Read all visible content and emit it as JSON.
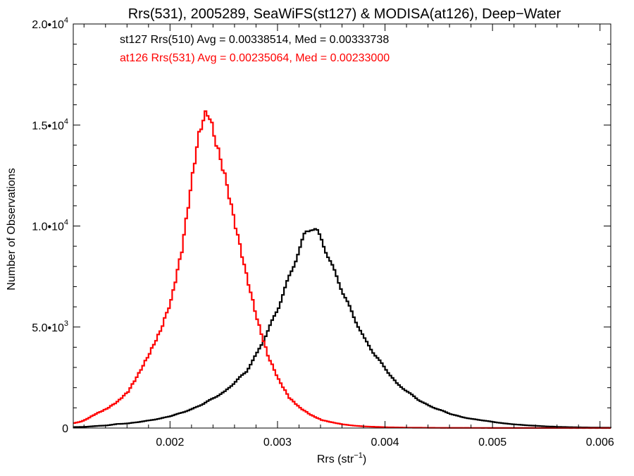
{
  "chart_data": {
    "type": "line",
    "title": "Rrs(531), 2005289, SeaWiFS(st127) & MODISA(at126), Deep−Water",
    "xlabel": "Rrs (str",
    "xlabel_sup": "−1",
    "xlabel_close": ")",
    "ylabel": "Number of Observations",
    "xlim": [
      0.0011,
      0.0061
    ],
    "ylim": [
      0,
      20000
    ],
    "xticks": [
      {
        "value": 0.002,
        "label": "0.002"
      },
      {
        "value": 0.003,
        "label": "0.003"
      },
      {
        "value": 0.004,
        "label": "0.004"
      },
      {
        "value": 0.005,
        "label": "0.005"
      },
      {
        "value": 0.006,
        "label": "0.006"
      }
    ],
    "yticks": [
      {
        "value": 0,
        "mant": "0",
        "exp": ""
      },
      {
        "value": 5000,
        "mant": "5.0•10",
        "exp": "3"
      },
      {
        "value": 10000,
        "mant": "1.0•10",
        "exp": "4"
      },
      {
        "value": 15000,
        "mant": "1.5•10",
        "exp": "4"
      },
      {
        "value": 20000,
        "mant": "2.0•10",
        "exp": "4"
      }
    ],
    "annotations": [
      {
        "text": "st127 Rrs(510) Avg = 0.00338514, Med = 0.00333738",
        "color": "#000000"
      },
      {
        "text": "at126 Rrs(531) Avg = 0.00235064, Med = 0.00233000",
        "color": "#ff0000"
      }
    ],
    "series": [
      {
        "color": "#000000",
        "points": [
          [
            0.0011,
            50
          ],
          [
            0.0012,
            60
          ],
          [
            0.0013,
            100
          ],
          [
            0.0014,
            130
          ],
          [
            0.0015,
            200
          ],
          [
            0.0016,
            230
          ],
          [
            0.0017,
            300
          ],
          [
            0.0018,
            380
          ],
          [
            0.0019,
            470
          ],
          [
            0.002,
            600
          ],
          [
            0.0021,
            760
          ],
          [
            0.0022,
            950
          ],
          [
            0.0023,
            1200
          ],
          [
            0.0024,
            1500
          ],
          [
            0.0025,
            1800
          ],
          [
            0.0026,
            2300
          ],
          [
            0.0027,
            2800
          ],
          [
            0.0028,
            3700
          ],
          [
            0.0029,
            4800
          ],
          [
            0.003,
            6000
          ],
          [
            0.0031,
            7500
          ],
          [
            0.0032,
            8900
          ],
          [
            0.00325,
            9700
          ],
          [
            0.0033,
            9900
          ],
          [
            0.00335,
            9800
          ],
          [
            0.0034,
            9300
          ],
          [
            0.0035,
            8000
          ],
          [
            0.0036,
            6700
          ],
          [
            0.0037,
            5500
          ],
          [
            0.0038,
            4400
          ],
          [
            0.0039,
            3600
          ],
          [
            0.004,
            2900
          ],
          [
            0.0041,
            2200
          ],
          [
            0.0042,
            1800
          ],
          [
            0.0043,
            1400
          ],
          [
            0.0044,
            1100
          ],
          [
            0.0045,
            900
          ],
          [
            0.0046,
            700
          ],
          [
            0.0047,
            550
          ],
          [
            0.0048,
            450
          ],
          [
            0.0049,
            380
          ],
          [
            0.005,
            300
          ],
          [
            0.0051,
            230
          ],
          [
            0.0052,
            180
          ],
          [
            0.0053,
            140
          ],
          [
            0.0054,
            110
          ],
          [
            0.0055,
            80
          ],
          [
            0.0056,
            60
          ],
          [
            0.0057,
            45
          ],
          [
            0.0058,
            35
          ],
          [
            0.0059,
            25
          ],
          [
            0.006,
            20
          ],
          [
            0.0061,
            15
          ]
        ]
      },
      {
        "color": "#ff0000",
        "points": [
          [
            0.0011,
            250
          ],
          [
            0.00115,
            300
          ],
          [
            0.0012,
            400
          ],
          [
            0.0013,
            700
          ],
          [
            0.0014,
            950
          ],
          [
            0.0015,
            1300
          ],
          [
            0.0016,
            1800
          ],
          [
            0.0017,
            2700
          ],
          [
            0.0018,
            3700
          ],
          [
            0.0019,
            4800
          ],
          [
            0.002,
            6300
          ],
          [
            0.0021,
            8800
          ],
          [
            0.0022,
            12500
          ],
          [
            0.00225,
            14300
          ],
          [
            0.0023,
            15300
          ],
          [
            0.00233,
            15600
          ],
          [
            0.00236,
            15400
          ],
          [
            0.0024,
            14500
          ],
          [
            0.0025,
            12500
          ],
          [
            0.0026,
            10000
          ],
          [
            0.0027,
            7600
          ],
          [
            0.0028,
            5400
          ],
          [
            0.0029,
            3600
          ],
          [
            0.003,
            2400
          ],
          [
            0.0031,
            1500
          ],
          [
            0.0032,
            1000
          ],
          [
            0.0033,
            650
          ],
          [
            0.0034,
            400
          ],
          [
            0.0035,
            280
          ],
          [
            0.0036,
            180
          ],
          [
            0.0037,
            120
          ],
          [
            0.0038,
            80
          ],
          [
            0.004,
            40
          ],
          [
            0.0042,
            20
          ],
          [
            0.0045,
            10
          ],
          [
            0.005,
            5
          ],
          [
            0.0055,
            2
          ],
          [
            0.0061,
            1
          ]
        ]
      }
    ]
  }
}
